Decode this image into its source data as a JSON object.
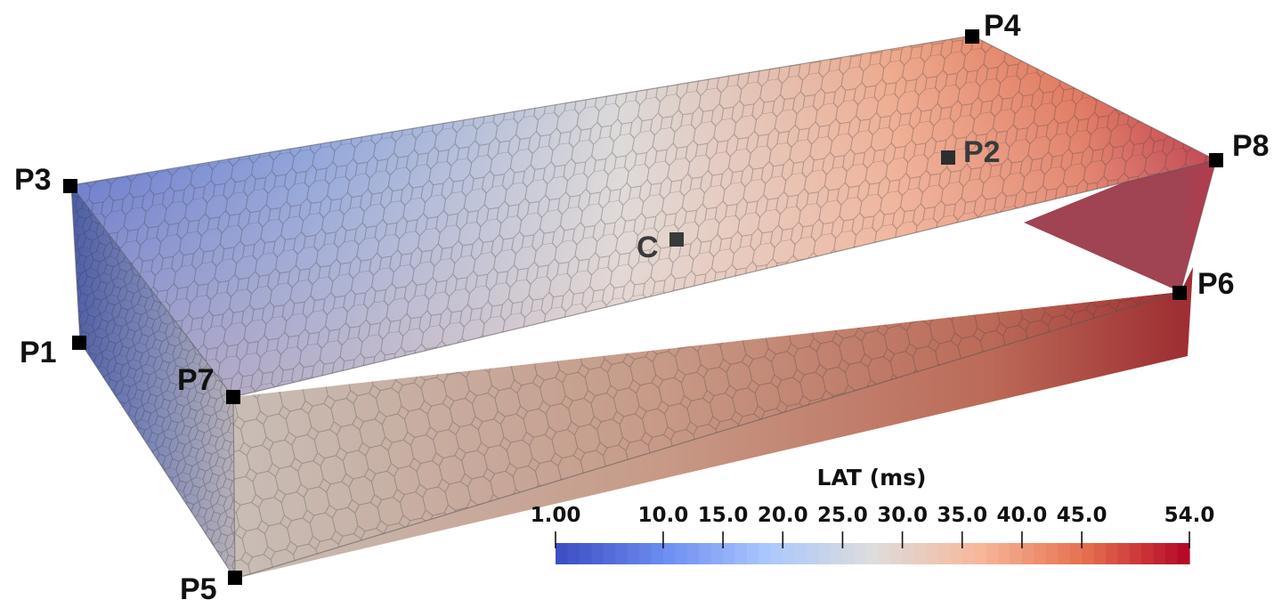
{
  "colorbar": {
    "title": "LAT (ms)",
    "min": 1.0,
    "max": 54.0,
    "ticks": [
      {
        "value": 1.0,
        "label": "1.00"
      },
      {
        "value": 10.0,
        "label": "10.0"
      },
      {
        "value": 15.0,
        "label": "15.0"
      },
      {
        "value": 20.0,
        "label": "20.0"
      },
      {
        "value": 25.0,
        "label": "25.0"
      },
      {
        "value": 30.0,
        "label": "30.0"
      },
      {
        "value": 35.0,
        "label": "35.0"
      },
      {
        "value": 40.0,
        "label": "40.0"
      },
      {
        "value": 45.0,
        "label": "45.0"
      },
      {
        "value": 54.0,
        "label": "54.0"
      }
    ],
    "colormap": [
      "#3b4cc0",
      "#6a8bef",
      "#aac7fd",
      "#dddddd",
      "#f6b89c",
      "#e6714f",
      "#b40426"
    ]
  },
  "points": {
    "P1": "P1",
    "P2": "P2",
    "P3": "P3",
    "P4": "P4",
    "P5": "P5",
    "P6": "P6",
    "P7": "P7",
    "P8": "P8",
    "C": "C"
  }
}
